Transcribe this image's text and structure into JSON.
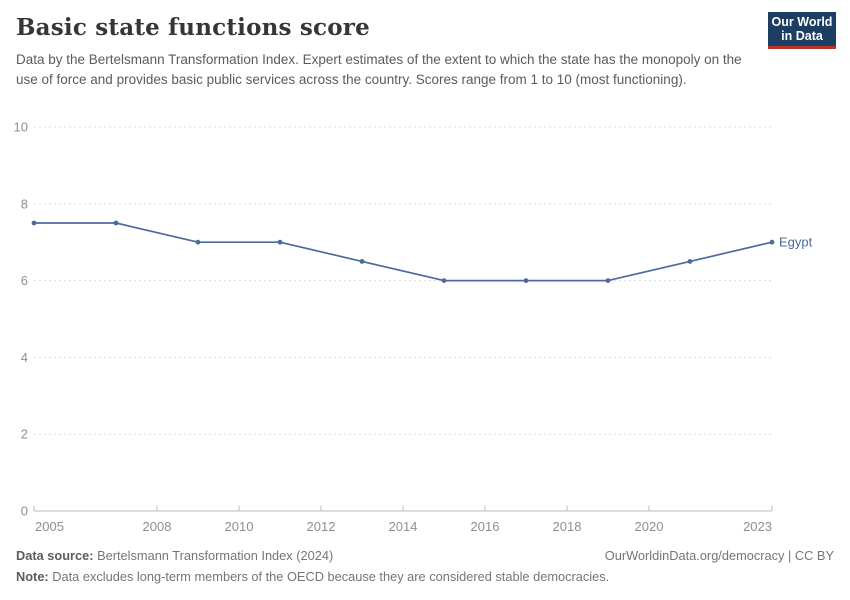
{
  "header": {
    "title": "Basic state functions score",
    "subtitle": "Data by the Bertelsmann Transformation Index. Expert estimates of the extent to which the state has the monopoly on the use of force and provides basic public services across the country. Scores range from 1 to 10 (most functioning).",
    "logo": {
      "line1": "Our World",
      "line2": "in Data",
      "bg_color": "#1d3d63",
      "accent_color": "#b5342c"
    }
  },
  "chart_data": {
    "type": "line",
    "title": "Basic state functions score",
    "x": [
      2005,
      2007,
      2009,
      2011,
      2013,
      2015,
      2017,
      2019,
      2021,
      2023
    ],
    "series": [
      {
        "name": "Egypt",
        "color": "#4c6a9c",
        "values": [
          7.5,
          7.5,
          7,
          7,
          6.5,
          6,
          6,
          6,
          6.5,
          7
        ]
      }
    ],
    "xlim": [
      2005,
      2023
    ],
    "ylim": [
      0,
      10
    ],
    "x_ticks": [
      2005,
      2008,
      2010,
      2012,
      2014,
      2016,
      2018,
      2020,
      2023
    ],
    "y_ticks": [
      0,
      2,
      4,
      6,
      8,
      10
    ],
    "grid": "horizontal-dashed",
    "grid_color": "#dcdcdc",
    "axis_color": "#bcbcbc",
    "tick_text_color": "#8f8f8f",
    "legend_position": "end-of-line-label"
  },
  "footer": {
    "source_label": "Data source:",
    "source_rest": " Bertelsmann Transformation Index (2024)",
    "credit": "OurWorldinData.org/democracy | CC BY",
    "note_label": "Note:",
    "note_rest": " Data excludes long-term members of the OECD because they are considered stable democracies."
  }
}
